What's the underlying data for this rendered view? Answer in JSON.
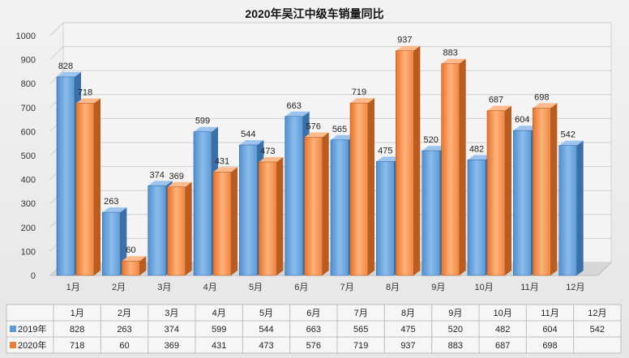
{
  "chart_data": {
    "type": "bar",
    "title": "2020年吴江中级车销量同比",
    "categories": [
      "1月",
      "2月",
      "3月",
      "4月",
      "5月",
      "6月",
      "7月",
      "8月",
      "9月",
      "10月",
      "11月",
      "12月"
    ],
    "ylim": [
      0,
      1000
    ],
    "yticks": [
      0,
      100,
      200,
      300,
      400,
      500,
      600,
      700,
      800,
      900,
      1000
    ],
    "grid": true,
    "legend": "table-below",
    "series": [
      {
        "name": "2019年",
        "color": "#5b9bd5",
        "values": [
          828,
          263,
          374,
          599,
          544,
          663,
          565,
          475,
          520,
          482,
          604,
          542
        ]
      },
      {
        "name": "2020年",
        "color": "#ed7d31",
        "values": [
          718,
          60,
          369,
          431,
          473,
          576,
          719,
          937,
          883,
          687,
          698,
          null
        ]
      }
    ]
  }
}
